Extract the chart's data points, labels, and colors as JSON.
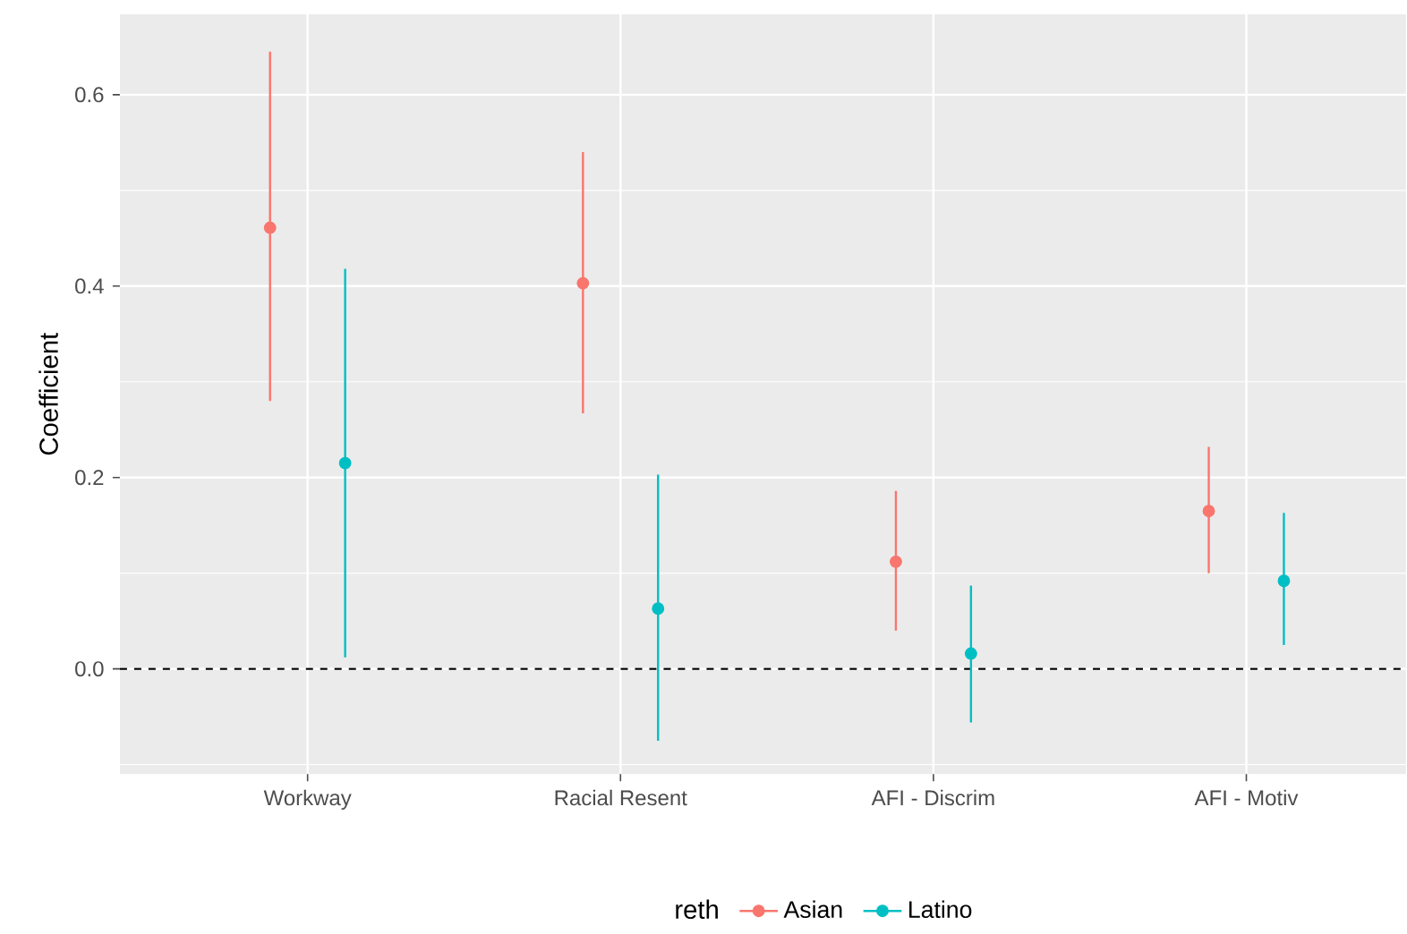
{
  "chart_data": {
    "type": "scatter",
    "ylabel": "Coefficient",
    "legend_title": "reth",
    "categories": [
      "Workway",
      "Racial Resent",
      "AFI - Discrim",
      "AFI - Motiv"
    ],
    "series": [
      {
        "name": "Asian",
        "color": "#f8766d",
        "values": [
          0.461,
          0.403,
          0.112,
          0.165
        ],
        "errors": [
          [
            0.28,
            0.645
          ],
          [
            0.267,
            0.54
          ],
          [
            0.04,
            0.186
          ],
          [
            0.1,
            0.232
          ]
        ]
      },
      {
        "name": "Latino",
        "color": "#00bfc4",
        "values": [
          0.215,
          0.063,
          0.016,
          0.092
        ],
        "errors": [
          [
            0.012,
            0.418
          ],
          [
            -0.075,
            0.203
          ],
          [
            -0.056,
            0.087
          ],
          [
            0.025,
            0.163
          ]
        ]
      }
    ],
    "ylim": [
      -0.11,
      0.684
    ],
    "yticks": [
      {
        "value": 0,
        "label": "0.0"
      },
      {
        "value": 0.2,
        "label": "0.2"
      },
      {
        "value": 0.4,
        "label": "0.4"
      },
      {
        "value": 0.6,
        "label": "0.6"
      }
    ],
    "ref_lines": [
      {
        "axis": "y",
        "value": 0,
        "color": "#000000",
        "line_style": "dashed"
      }
    ],
    "grid": true,
    "legend": "bottom",
    "marker": "circle"
  }
}
